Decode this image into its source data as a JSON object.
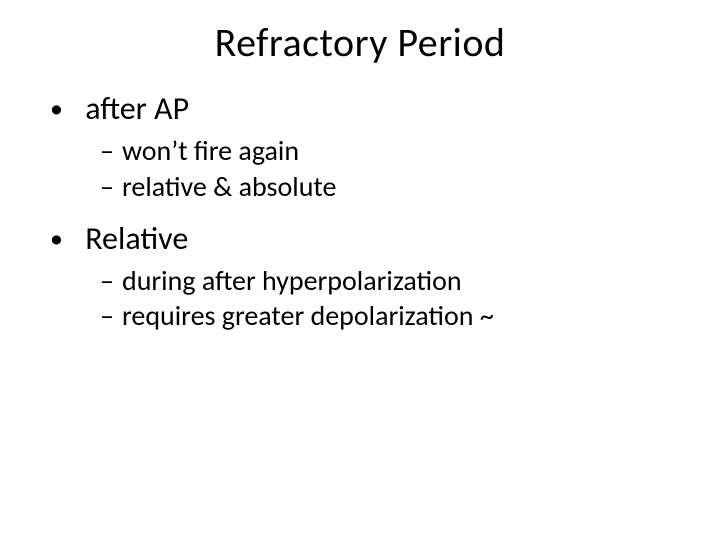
{
  "title": "Refractory Period",
  "bullets": [
    {
      "text": "after AP",
      "sub": [
        "won’t fire again",
        "relative & absolute"
      ]
    },
    {
      "text": "Relative",
      "sub": [
        "during after hyperpolarization",
        "requires greater depolarization ~"
      ]
    }
  ],
  "colors": {
    "background": "#ffffff",
    "text": "#000000"
  },
  "typography": {
    "title_fontsize": 40,
    "level1_fontsize": 32,
    "level2_fontsize": 28,
    "font_family": "Calibri"
  }
}
